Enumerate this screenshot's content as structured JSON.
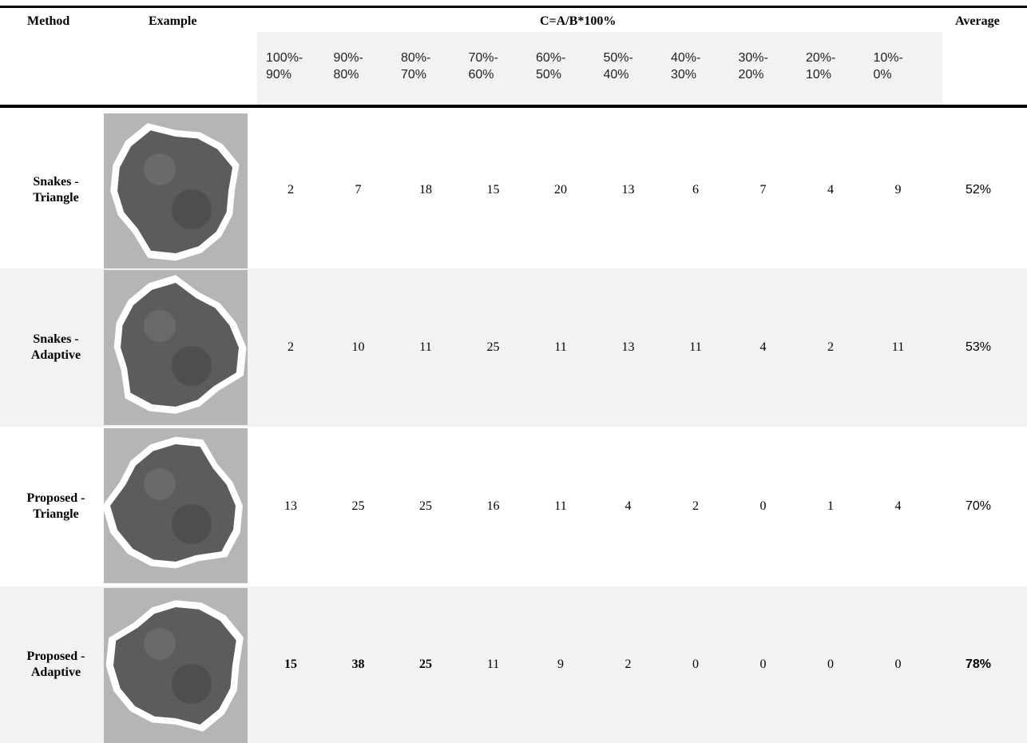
{
  "header": {
    "method": "Method",
    "example": "Example",
    "group": "C=A/B*100%",
    "average": "Average",
    "bins": [
      "100%- 90%",
      "90%- 80%",
      "80%- 70%",
      "70%- 60%",
      "60%- 50%",
      "50%- 40%",
      "40%- 30%",
      "30%- 20%",
      "20%- 10%",
      "10%- 0%"
    ]
  },
  "table": {
    "rows": [
      {
        "method": "Snakes - Triangle",
        "values": [
          2,
          7,
          18,
          15,
          20,
          13,
          6,
          7,
          4,
          9
        ],
        "average": "52%"
      },
      {
        "method": "Snakes - Adaptive",
        "values": [
          2,
          10,
          11,
          25,
          11,
          13,
          11,
          4,
          2,
          11
        ],
        "average": "53%"
      },
      {
        "method": "Proposed - Triangle",
        "values": [
          13,
          25,
          25,
          16,
          11,
          4,
          2,
          0,
          1,
          4
        ],
        "average": "70%"
      },
      {
        "method": "Proposed - Adaptive",
        "values": [
          15,
          38,
          25,
          11,
          9,
          2,
          0,
          0,
          0,
          0
        ],
        "average": "78%"
      }
    ]
  }
}
